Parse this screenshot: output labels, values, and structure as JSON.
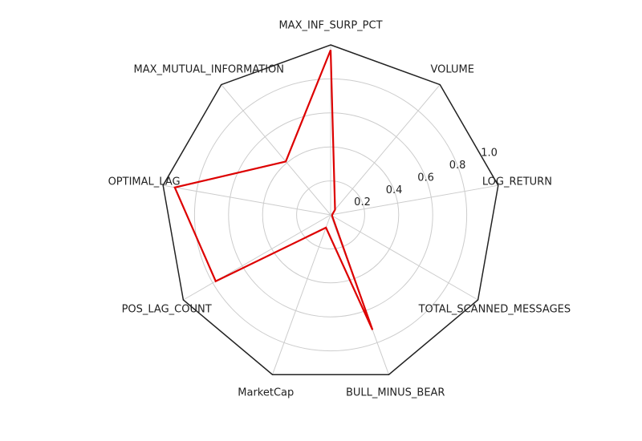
{
  "chart_data": {
    "type": "radar",
    "categories": [
      "MAX_INF_SURP_PCT",
      "VOLUME",
      "LOG_RETURN",
      "TOTAL_SCANNED_MESSAGES",
      "BULL_MINUS_BEAR",
      "MarketCap",
      "POS_LAG_COUNT",
      "OPTIMAL_LAG",
      "MAX_MUTUAL_INFORMATION"
    ],
    "series": [
      {
        "values": [
          0.97,
          0.04,
          0.01,
          0.01,
          0.72,
          0.08,
          0.78,
          0.93,
          0.41
        ]
      }
    ],
    "rlim": [
      0,
      1.0
    ],
    "rticks": [
      0.2,
      0.4,
      0.6,
      0.8,
      1.0
    ],
    "rtick_labels": [
      "0.2",
      "0.4",
      "0.6",
      "0.8",
      "1.0"
    ],
    "grid": true,
    "colors": {
      "series": "#dd0000",
      "frame": "#222222",
      "grid": "#cccccc"
    }
  }
}
